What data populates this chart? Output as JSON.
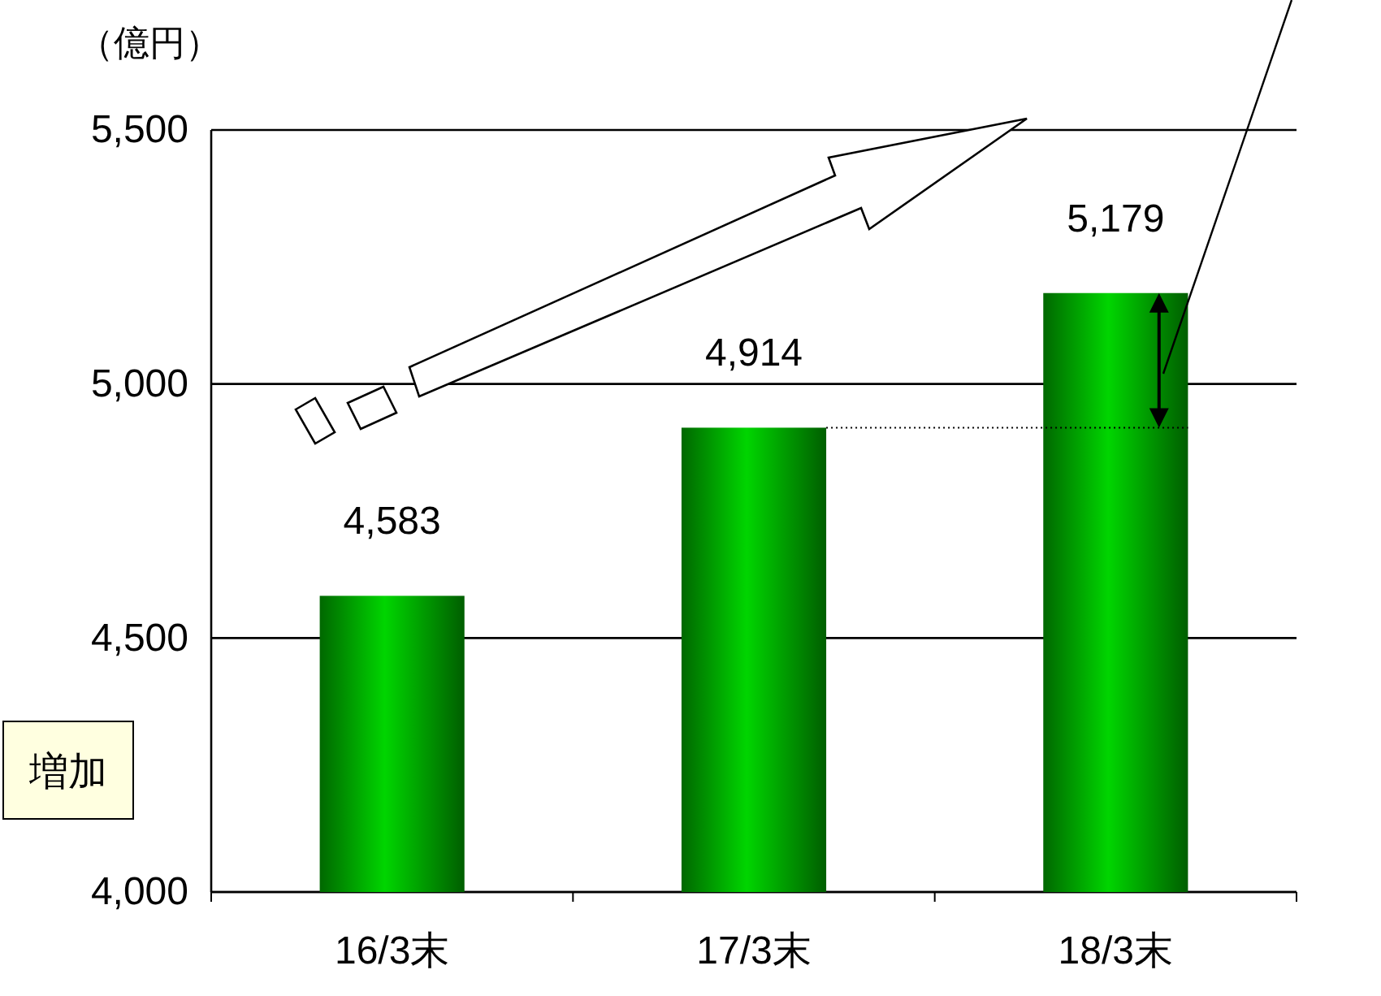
{
  "chart_data": {
    "type": "bar",
    "ylabel": "（億円）",
    "categories": [
      "16/3末",
      "17/3末",
      "18/3末"
    ],
    "values": [
      4583,
      4914,
      5179
    ],
    "color": "#00a000",
    "value_labels": [
      "4,583",
      "4,914",
      "5,179"
    ],
    "ylim": [
      4000,
      5500
    ],
    "yticks": [
      {
        "value": 4000,
        "label": "4,000"
      },
      {
        "value": 4500,
        "label": "4,500"
      },
      {
        "value": 5000,
        "label": "5,000"
      },
      {
        "value": 5500,
        "label": "5,500"
      }
    ],
    "grid": "y",
    "ref_lines": [
      {
        "axis": "y",
        "value": 4914,
        "line_style": "dotted"
      }
    ],
    "annotations": [
      "増加"
    ]
  }
}
